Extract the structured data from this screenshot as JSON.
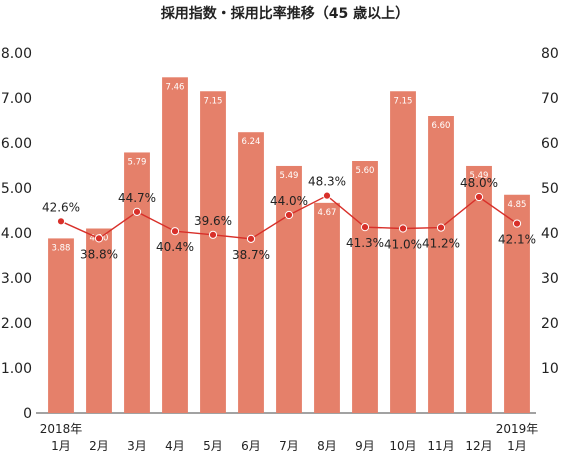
{
  "chart_data": {
    "type": "bar+line",
    "title": "採用指数・採用比率推移（45 歳以上）",
    "categories": [
      "2018年\n1月",
      "2月",
      "3月",
      "4月",
      "5月",
      "6月",
      "7月",
      "8月",
      "9月",
      "10月",
      "11月",
      "12月",
      "2019年\n1月"
    ],
    "series": [
      {
        "type": "bar",
        "axis": "left",
        "color": "#e5806a",
        "values": [
          3.88,
          4.1,
          5.79,
          7.46,
          7.15,
          6.24,
          5.49,
          4.67,
          5.6,
          7.15,
          6.6,
          5.49,
          4.85
        ],
        "labels": [
          "3.88",
          "4.10",
          "5.79",
          "7.46",
          "7.15",
          "6.24",
          "5.49",
          "4.67",
          "5.60",
          "7.15",
          "6.60",
          "5.49",
          "4.85"
        ]
      },
      {
        "type": "line",
        "axis": "right",
        "color": "#d8302a",
        "values": [
          42.6,
          38.8,
          44.7,
          40.4,
          39.6,
          38.7,
          44.0,
          48.3,
          41.3,
          41.0,
          41.2,
          48.0,
          42.1
        ],
        "labels": [
          "42.6%",
          "38.8%",
          "44.7%",
          "40.4%",
          "39.6%",
          "38.7%",
          "44.0%",
          "48.3%",
          "41.3%",
          "41.0%",
          "41.2%",
          "48.0%",
          "42.1%"
        ]
      }
    ],
    "y_left": {
      "ylim": [
        0,
        8
      ],
      "ticks": [
        "0",
        "1.00",
        "2.00",
        "3.00",
        "4.00",
        "5.00",
        "6.00",
        "7.00",
        "8.00"
      ]
    },
    "y_right": {
      "ylim": [
        0,
        80
      ],
      "ticks": [
        "",
        "10",
        "20",
        "30",
        "40",
        "50",
        "60",
        "70",
        "80"
      ]
    },
    "grid": false,
    "legend": "none"
  }
}
